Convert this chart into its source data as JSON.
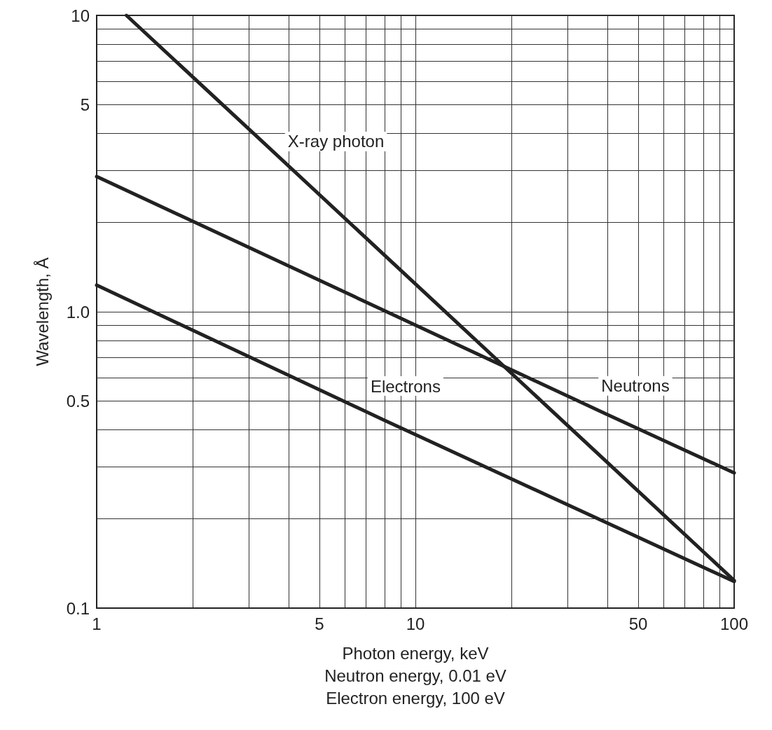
{
  "chart_data": {
    "type": "line",
    "xlabel": "Photon energy, keV\nNeutron energy, 0.01 eV\nElectron energy, 100 eV",
    "ylabel": "Wavelength, Å",
    "log": "xy",
    "grid": true,
    "legend": false,
    "marker": "none",
    "line_style": "solid",
    "xlim": [
      1,
      100
    ],
    "ylim": [
      0.1,
      10
    ],
    "xticks": [
      1,
      {
        "value": 2,
        "label": null
      },
      {
        "value": 3,
        "label": null
      },
      {
        "value": 4,
        "label": null
      },
      5,
      {
        "value": 6,
        "label": null
      },
      {
        "value": 7,
        "label": null
      },
      {
        "value": 8,
        "label": null
      },
      {
        "value": 9,
        "label": null
      },
      10,
      {
        "value": 20,
        "label": null
      },
      {
        "value": 30,
        "label": null
      },
      {
        "value": 40,
        "label": null
      },
      50,
      {
        "value": 60,
        "label": null
      },
      {
        "value": 70,
        "label": null
      },
      {
        "value": 80,
        "label": null
      },
      {
        "value": 90,
        "label": null
      },
      100
    ],
    "yticks": [
      {
        "value": 0.1,
        "label": "0.1"
      },
      {
        "value": 0.2,
        "label": null
      },
      {
        "value": 0.3,
        "label": null
      },
      {
        "value": 0.4,
        "label": null
      },
      0.5,
      {
        "value": 0.6,
        "label": null
      },
      {
        "value": 0.7,
        "label": null
      },
      {
        "value": 0.8,
        "label": null
      },
      {
        "value": 0.9,
        "label": null
      },
      {
        "value": 1,
        "label": "1.0"
      },
      {
        "value": 2,
        "label": null
      },
      {
        "value": 3,
        "label": null
      },
      {
        "value": 4,
        "label": null
      },
      5,
      {
        "value": 6,
        "label": null
      },
      {
        "value": 7,
        "label": null
      },
      {
        "value": 8,
        "label": null
      },
      {
        "value": 9,
        "label": null
      },
      10
    ],
    "series": [
      {
        "name": "X-ray photon",
        "color": "#222222",
        "x": [
          1.24,
          3.2,
          100
        ],
        "values": [
          10,
          3.88,
          0.124
        ]
      },
      {
        "name": "Neutrons",
        "color": "#222222",
        "x": [
          1,
          40,
          100
        ],
        "values": [
          2.86,
          0.45,
          0.286
        ]
      },
      {
        "name": "Electrons",
        "color": "#222222",
        "x": [
          1,
          8,
          100
        ],
        "values": [
          1.23,
          0.43,
          0.123
        ]
      }
    ]
  }
}
